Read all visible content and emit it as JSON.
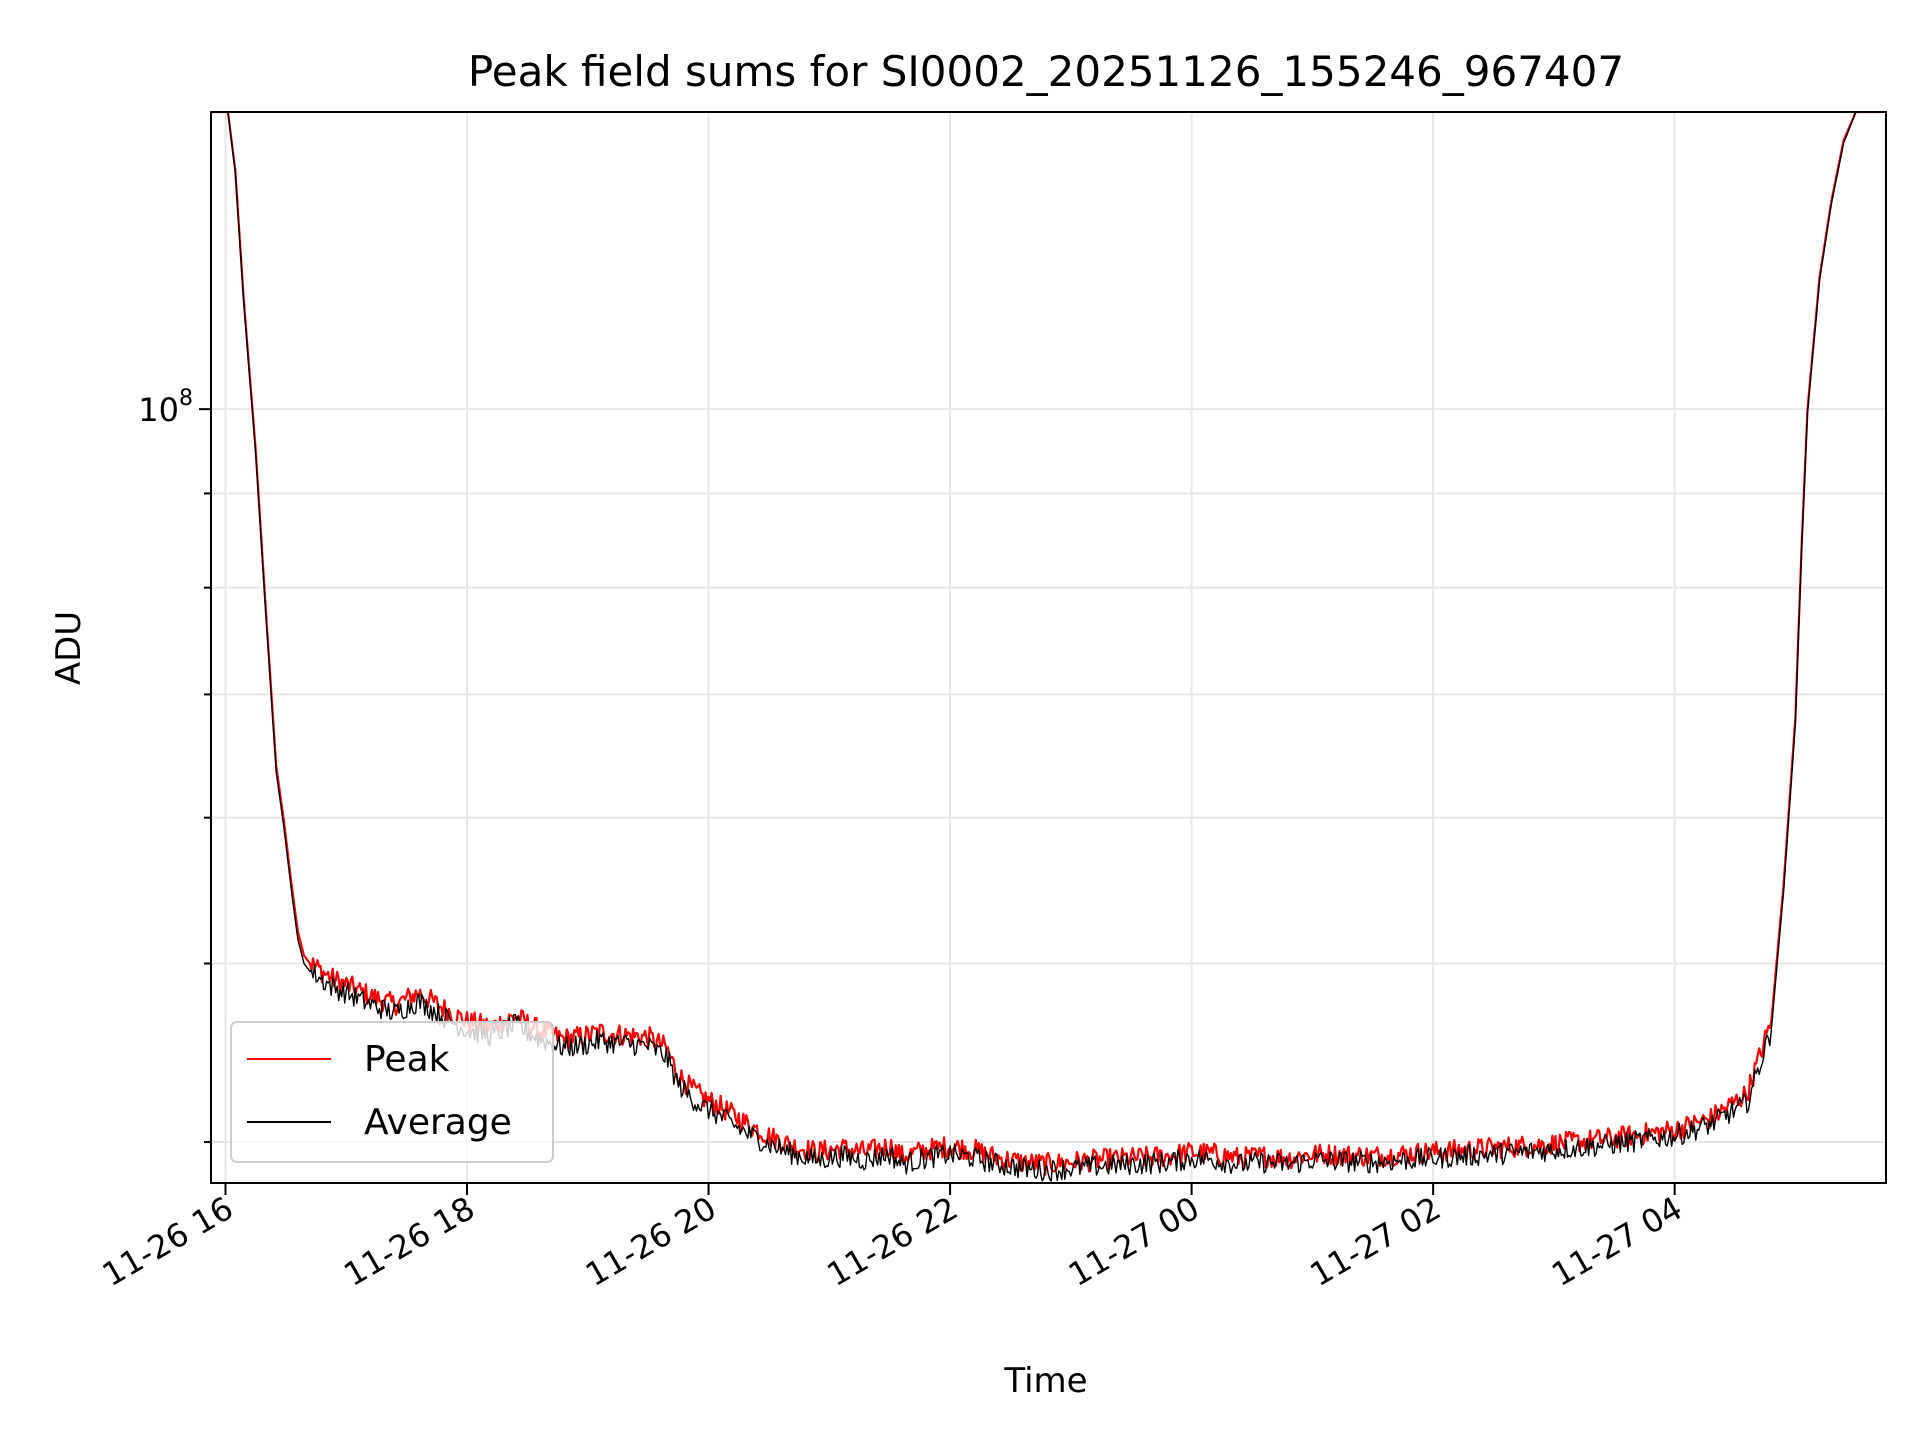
{
  "chart_data": {
    "type": "line",
    "title": "Peak field sums for SI0002_20251126_155246_967407",
    "xlabel": "Time",
    "ylabel": "ADU",
    "y_scale": "log",
    "ylim": [
      38000000,
      145000000
    ],
    "xlim_hours": [
      -0.12,
      13.75
    ],
    "x_unit": "hours since 2025-11-26 16:00",
    "x_ticks": [
      {
        "hour": 0,
        "label": "11-26 16"
      },
      {
        "hour": 2,
        "label": "11-26 18"
      },
      {
        "hour": 4,
        "label": "11-26 20"
      },
      {
        "hour": 6,
        "label": "11-26 22"
      },
      {
        "hour": 8,
        "label": "11-27 00"
      },
      {
        "hour": 10,
        "label": "11-27 02"
      },
      {
        "hour": 12,
        "label": "11-27 04"
      }
    ],
    "y_major_ticks": [
      {
        "value": 100000000,
        "label_base": "10",
        "label_exp": "8"
      }
    ],
    "y_minor_ticks": [
      40000000,
      50000000,
      60000000,
      70000000,
      80000000,
      90000000,
      200000000
    ],
    "grid": true,
    "legend": {
      "location": "lower-left",
      "entries": [
        {
          "name": "Peak",
          "color": "#ff0000"
        },
        {
          "name": "Average",
          "color": "#000000"
        }
      ]
    },
    "series": [
      {
        "name": "Peak",
        "color": "#ff0000",
        "x": [
          -0.1,
          0.02,
          0.08,
          0.15,
          0.25,
          0.35,
          0.42,
          0.48,
          0.55,
          0.6,
          0.65,
          0.7,
          0.75,
          0.8,
          0.9,
          1.0,
          1.2,
          1.4,
          1.6,
          1.8,
          2.0,
          2.2,
          2.4,
          2.6,
          2.8,
          3.0,
          3.1,
          3.2,
          3.35,
          3.5,
          3.65,
          3.75,
          3.85,
          3.95,
          4.1,
          4.3,
          4.5,
          4.7,
          4.9,
          5.1,
          5.3,
          5.5,
          5.6,
          5.8,
          6.0,
          6.2,
          6.4,
          6.6,
          6.8,
          7.0,
          7.2,
          7.5,
          7.8,
          8.0,
          8.2,
          8.4,
          8.6,
          8.8,
          9.0,
          9.5,
          10.0,
          10.5,
          11.0,
          11.5,
          12.0,
          12.3,
          12.6,
          12.8,
          12.9,
          13.0,
          13.05,
          13.1,
          13.2,
          13.3,
          13.4,
          13.5,
          13.6,
          13.7
        ],
        "y": [
          145000000,
          145000000,
          135000000,
          115000000,
          95000000,
          75000000,
          64000000,
          60000000,
          55000000,
          52000000,
          50500000,
          50000000,
          49800000,
          49500000,
          49000000,
          48700000,
          48000000,
          47500000,
          48200000,
          47300000,
          46500000,
          46200000,
          46800000,
          46000000,
          45500000,
          45700000,
          45900000,
          45800000,
          45700000,
          45600000,
          45000000,
          43500000,
          42800000,
          42300000,
          41800000,
          41000000,
          40300000,
          39800000,
          39500000,
          39700000,
          39500000,
          39800000,
          39300000,
          39600000,
          39800000,
          39600000,
          39200000,
          39000000,
          38900000,
          39000000,
          39100000,
          39200000,
          39300000,
          39500000,
          39400000,
          39200000,
          39300000,
          39200000,
          39400000,
          39300000,
          39500000,
          39700000,
          39900000,
          40200000,
          40600000,
          41200000,
          42500000,
          46500000,
          55000000,
          68000000,
          84000000,
          100000000,
          118000000,
          130000000,
          140000000,
          145000000,
          145000000,
          145000000
        ]
      },
      {
        "name": "Average",
        "color": "#000000",
        "x": [
          -0.1,
          0.02,
          0.08,
          0.15,
          0.25,
          0.35,
          0.42,
          0.48,
          0.55,
          0.6,
          0.65,
          0.7,
          0.75,
          0.8,
          0.9,
          1.0,
          1.2,
          1.4,
          1.6,
          1.8,
          2.0,
          2.2,
          2.4,
          2.6,
          2.8,
          3.0,
          3.1,
          3.2,
          3.35,
          3.5,
          3.65,
          3.75,
          3.85,
          3.95,
          4.1,
          4.3,
          4.5,
          4.7,
          4.9,
          5.1,
          5.3,
          5.5,
          5.6,
          5.8,
          6.0,
          6.2,
          6.4,
          6.6,
          6.8,
          7.0,
          7.2,
          7.5,
          7.8,
          8.0,
          8.2,
          8.4,
          8.6,
          8.8,
          9.0,
          9.5,
          10.0,
          10.5,
          11.0,
          11.5,
          12.0,
          12.3,
          12.6,
          12.8,
          12.9,
          13.0,
          13.05,
          13.1,
          13.2,
          13.3,
          13.4,
          13.5,
          13.6,
          13.7
        ],
        "y": [
          145000000,
          145000000,
          134500000,
          114500000,
          94500000,
          74500000,
          63500000,
          59500000,
          54500000,
          51500000,
          50000000,
          49500000,
          49300000,
          49000000,
          48500000,
          48200000,
          47500000,
          47000000,
          47700000,
          46800000,
          46000000,
          45700000,
          46300000,
          45500000,
          45000000,
          45200000,
          45400000,
          45300000,
          45200000,
          45100000,
          44500000,
          43000000,
          42300000,
          41800000,
          41300000,
          40500000,
          39900000,
          39400000,
          39100000,
          39300000,
          39100000,
          39400000,
          38900000,
          39200000,
          39400000,
          39200000,
          38900000,
          38700000,
          38600000,
          38700000,
          38800000,
          38900000,
          39000000,
          39200000,
          39100000,
          38900000,
          39000000,
          38900000,
          39100000,
          39000000,
          39200000,
          39400000,
          39600000,
          39900000,
          40300000,
          40900000,
          42000000,
          46000000,
          54500000,
          67500000,
          83500000,
          99500000,
          117500000,
          129500000,
          139500000,
          145000000,
          145000000,
          145000000
        ]
      }
    ]
  }
}
